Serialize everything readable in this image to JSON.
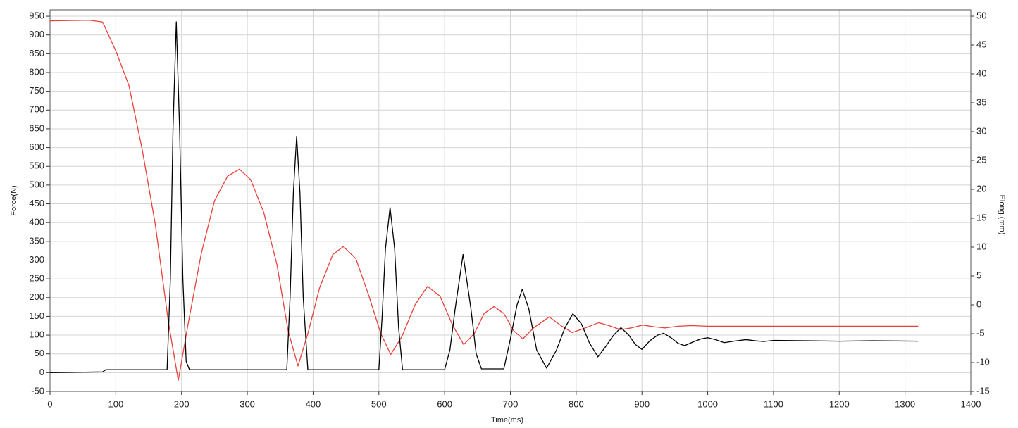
{
  "chart_data": {
    "type": "line",
    "x_label": "Time(ms)",
    "y_label": "Force(N)",
    "y2_label": "Elong.(mm)",
    "xlim": [
      0,
      1400
    ],
    "xticks": [
      0,
      100,
      200,
      300,
      400,
      500,
      600,
      700,
      800,
      900,
      1000,
      1100,
      1200,
      1300,
      1400
    ],
    "ylim": [
      -50,
      967
    ],
    "yticks": [
      -50,
      0,
      50,
      100,
      150,
      200,
      250,
      300,
      350,
      400,
      450,
      500,
      550,
      600,
      650,
      700,
      750,
      800,
      850,
      900,
      950
    ],
    "y2lim": [
      -15,
      51.1
    ],
    "y2ticks": [
      -15,
      -10,
      -5,
      0,
      5,
      10,
      15,
      20,
      25,
      30,
      35,
      40,
      45,
      50
    ],
    "grid": true,
    "series": [
      {
        "color": "#000000",
        "axis": "y",
        "x": [
          0,
          80,
          85,
          178,
          183,
          187,
          192,
          197,
          202,
          207,
          212,
          360,
          365,
          370,
          375,
          380,
          385,
          392,
          500,
          505,
          510,
          517,
          524,
          530,
          536,
          600,
          608,
          616,
          628,
          640,
          648,
          656,
          690,
          700,
          710,
          718,
          728,
          740,
          755,
          770,
          783,
          795,
          808,
          820,
          833,
          845,
          857,
          868,
          880,
          890,
          900,
          912,
          924,
          933,
          945,
          955,
          965,
          978,
          990,
          1000,
          1012,
          1025,
          1040,
          1058,
          1072,
          1085,
          1100,
          1150,
          1200,
          1250,
          1320
        ],
        "values": [
          0,
          2,
          8,
          8,
          250,
          650,
          935,
          650,
          250,
          30,
          8,
          8,
          200,
          480,
          630,
          480,
          200,
          8,
          8,
          150,
          330,
          440,
          330,
          120,
          8,
          8,
          60,
          170,
          315,
          170,
          50,
          10,
          10,
          90,
          180,
          222,
          170,
          60,
          12,
          60,
          120,
          157,
          130,
          80,
          42,
          70,
          100,
          120,
          100,
          75,
          62,
          85,
          100,
          105,
          92,
          78,
          72,
          82,
          90,
          93,
          88,
          80,
          84,
          88,
          85,
          83,
          86,
          85,
          84,
          85,
          84
        ]
      },
      {
        "color": "#e8413c",
        "axis": "y2",
        "x": [
          0,
          60,
          80,
          100,
          120,
          140,
          160,
          180,
          195,
          210,
          230,
          250,
          270,
          288,
          305,
          325,
          345,
          362,
          377,
          392,
          410,
          430,
          446,
          465,
          485,
          503,
          518,
          535,
          555,
          574,
          593,
          612,
          629,
          645,
          660,
          675,
          690,
          705,
          719,
          735,
          759,
          777,
          794,
          814,
          834,
          850,
          867,
          884,
          901,
          918,
          935,
          955,
          975,
          1000,
          1100,
          1200,
          1320
        ],
        "values": [
          49.2,
          49.3,
          49,
          44,
          38,
          27,
          14,
          -3,
          -13.1,
          -3.3,
          8.9,
          18,
          22.3,
          23.5,
          21.7,
          16,
          7,
          -4.5,
          -10.6,
          -5,
          3,
          8.7,
          10.1,
          8,
          1.5,
          -5,
          -8.6,
          -5.5,
          0,
          3.2,
          1.5,
          -3.5,
          -6.9,
          -5,
          -1.5,
          -0.3,
          -1.5,
          -4.5,
          -5.9,
          -4,
          -2.1,
          -3.6,
          -4.8,
          -4,
          -3.1,
          -3.6,
          -4.3,
          -4,
          -3.5,
          -3.8,
          -4,
          -3.7,
          -3.6,
          -3.7,
          -3.7,
          -3.7,
          -3.7
        ]
      }
    ]
  }
}
